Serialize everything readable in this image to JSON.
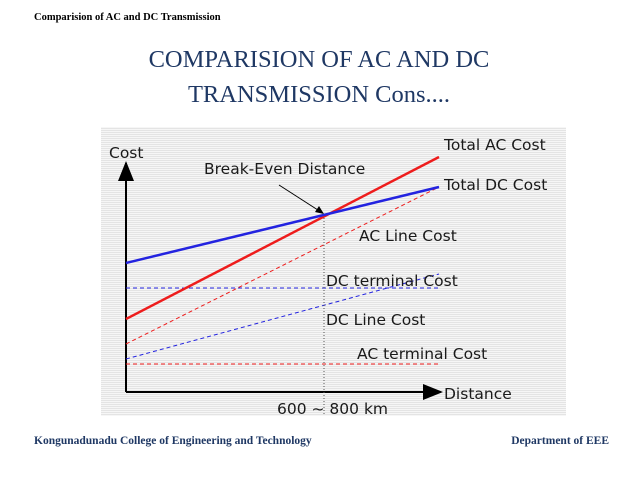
{
  "header": {
    "text": "Comparision of AC and DC Transmission"
  },
  "title": {
    "line1": "COMPARISION OF AC AND DC",
    "line2": "TRANSMISSION Cons...."
  },
  "diagram": {
    "y_axis_label": "Cost",
    "x_axis_label": "Distance",
    "break_even_label": "Break-Even Distance",
    "break_even_range": "600 ~ 800 km",
    "lines": {
      "total_ac": {
        "label": "Total AC Cost",
        "color": "#ee1c1c"
      },
      "total_dc": {
        "label": "Total DC Cost",
        "color": "#2323e0"
      },
      "ac_line": {
        "label": "AC Line Cost",
        "color": "#ee1c1c"
      },
      "dc_terminal": {
        "label": "DC terminal Cost",
        "color": "#2323e0"
      },
      "dc_line": {
        "label": "DC Line Cost",
        "color": "#2323e0"
      },
      "ac_terminal": {
        "label": "AC terminal Cost",
        "color": "#ee1c1c"
      }
    }
  },
  "footer": {
    "left": "Kongunadunadu College of Engineering and Technology",
    "right": "Department of EEE"
  }
}
